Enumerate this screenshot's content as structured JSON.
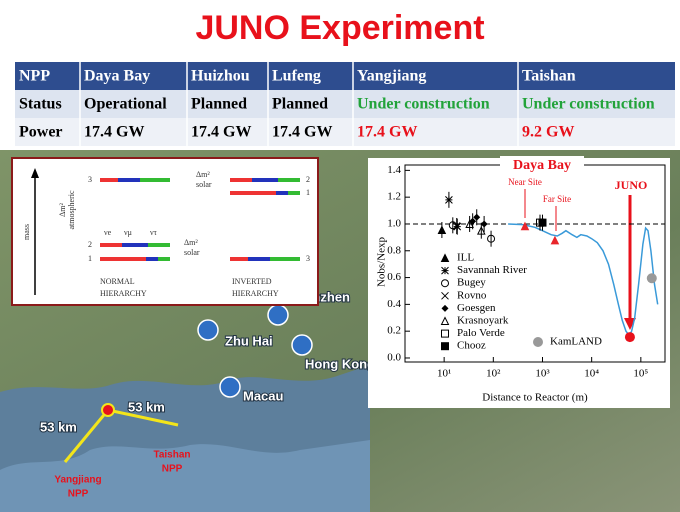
{
  "title": "JUNO Experiment",
  "table": {
    "header": [
      "NPP",
      "Daya Bay",
      "Huizhou",
      "Lufeng",
      "Yangjiang",
      "Taishan"
    ],
    "rows": [
      [
        "Status",
        "Operational",
        "Planned",
        "Planned",
        "Under construction",
        "Under construction"
      ],
      [
        "Power",
        "17.4 GW",
        "17.4 GW",
        "17.4 GW",
        "17.4 GW",
        "9.2 GW"
      ]
    ]
  },
  "map": {
    "city_1": "Shenzhen",
    "city_2": "Zhu Hai",
    "city_3": "Hong Kong",
    "city_4": "Macau",
    "distance_1": "53 km",
    "distance_2": "53 km",
    "npp_1": [
      "Yangjiang",
      "NPP"
    ],
    "npp_2": [
      "Taishan",
      "NPP"
    ]
  },
  "hierarchy": {
    "axis": "mass",
    "delta": "Δm²",
    "atmospheric": "atmospheric",
    "solar": "solar",
    "flavors": [
      "νe",
      "νμ",
      "ντ"
    ],
    "normal": {
      "levels": [
        "3",
        "2",
        "1"
      ],
      "label": [
        "NORMAL",
        "HIERARCHY"
      ]
    },
    "inverted": {
      "levels": [
        "2",
        "1",
        "3"
      ],
      "label": [
        "INVERTED",
        "HIERARCHY"
      ]
    }
  },
  "chart_data": {
    "type": "scatter",
    "x_label": "Distance to Reactor (m)",
    "y_label": "Nobs/Nexp",
    "x_log": true,
    "xlim": [
      1.6,
      310000
    ],
    "xticks": [
      {
        "value": 10,
        "label": "10¹"
      },
      {
        "value": 100,
        "label": "10²"
      },
      {
        "value": 1000,
        "label": "10³"
      },
      {
        "value": 10000,
        "label": "10⁴"
      },
      {
        "value": 100000,
        "label": "10⁵"
      }
    ],
    "ylim": [
      -0.03,
      1.44
    ],
    "yticks": [
      {
        "value": 0,
        "label": "0.0"
      },
      0.2,
      0.4,
      0.6,
      0.8,
      {
        "value": 1,
        "label": "1.0"
      },
      1.2,
      1.4
    ],
    "reference_line": 1,
    "annotations": [
      "Daya Bay",
      "Near Site",
      "Far Site",
      "JUNO"
    ],
    "series": [
      {
        "style": "line",
        "color": "#3a9ad9",
        "x": [
          200,
          400,
          700,
          1000,
          1500,
          2000,
          2500,
          3000,
          4000,
          5000,
          6000,
          8000,
          10000,
          13000,
          17000,
          22000,
          28000,
          35000,
          42000,
          50000,
          58000,
          65000,
          75000,
          90000,
          110000,
          125000,
          140000,
          160000,
          190000,
          220000
        ],
        "values": [
          1.0,
          0.995,
          0.975,
          0.95,
          0.92,
          0.91,
          0.93,
          0.95,
          0.92,
          0.9,
          0.92,
          0.91,
          0.89,
          0.86,
          0.8,
          0.7,
          0.55,
          0.4,
          0.28,
          0.2,
          0.17,
          0.2,
          0.3,
          0.55,
          0.85,
          0.97,
          0.95,
          0.8,
          0.55,
          0.4
        ]
      },
      {
        "name": "ILL",
        "marker": "triangle",
        "color": "#000000",
        "x": [
          9
        ],
        "values": [
          0.955
        ]
      },
      {
        "name": "Savannah River",
        "marker": "asterisk",
        "color": "#000000",
        "x": [
          12.5,
          18.5
        ],
        "values": [
          1.18,
          0.98
        ]
      },
      {
        "name": "Bugey",
        "marker": "circle-open",
        "color": "#000000",
        "x": [
          15,
          90
        ],
        "values": [
          0.99,
          0.89
        ]
      },
      {
        "name": "Rovno",
        "marker": "cross",
        "color": "#000000",
        "x": [
          18
        ],
        "values": [
          0.985
        ]
      },
      {
        "name": "Goesgen",
        "marker": "diamond",
        "color": "#000000",
        "x": [
          38,
          46,
          65
        ],
        "values": [
          1.02,
          1.05,
          1.0
        ]
      },
      {
        "name": "Krasnoyark",
        "marker": "triangle-open",
        "color": "#000000",
        "x": [
          33,
          57
        ],
        "values": [
          1.0,
          0.95
        ]
      },
      {
        "name": "Palo Verde",
        "marker": "square-open",
        "color": "#000000",
        "x": [
          890
        ],
        "values": [
          1.01
        ]
      },
      {
        "name": "Chooz",
        "marker": "square",
        "color": "#000000",
        "x": [
          1000
        ],
        "values": [
          1.01
        ]
      },
      {
        "marker": "triangle",
        "color": "#e8252b",
        "x": [
          440,
          1790
        ],
        "values": [
          0.983,
          0.878
        ]
      },
      {
        "marker": "circle",
        "color": "#e8111b",
        "x": [
          60000
        ],
        "values": [
          0.156
        ]
      },
      {
        "name": "KamLAND",
        "marker": "circle",
        "color": "#999999",
        "x": [
          167000
        ],
        "values": [
          0.595
        ]
      }
    ]
  }
}
